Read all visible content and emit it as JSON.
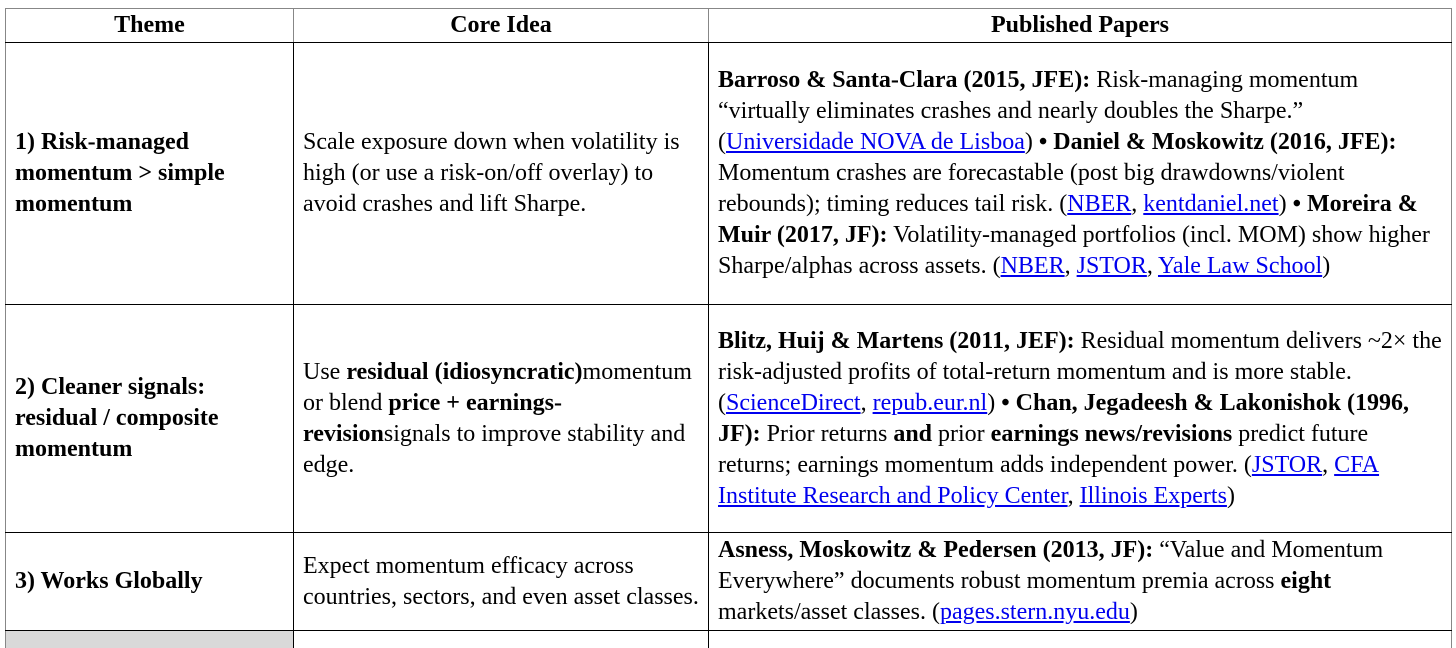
{
  "colors": {
    "link": "#0000ee",
    "text": "#000000",
    "inner_border": "#000000",
    "outer_border": "#878787",
    "shaded_cell": "#d9d9d9",
    "background": "#ffffff"
  },
  "table": {
    "header": [
      "Theme",
      "Core Idea",
      "Published Papers"
    ],
    "rows": [
      {
        "theme": [
          {
            "b": "1) Risk-managed momentum > simple momentum"
          }
        ],
        "core": [
          {
            "t": "Scale exposure down when volatility is high (or use a risk-on/off overlay) to avoid crashes and lift Sharpe."
          }
        ],
        "papers": [
          {
            "b": "Barroso & Santa-Clara (2015, JFE):"
          },
          {
            "t": " Risk-managing momentum “virtually eliminates crashes and nearly doubles the Sharpe.” ("
          },
          {
            "a": "Universidade NOVA de Lisboa"
          },
          {
            "t": ") "
          },
          {
            "b": "•  Daniel & Moskowitz (2016, JFE):"
          },
          {
            "t": " Momentum crashes are forecastable (post big drawdowns/violent rebounds); timing reduces tail risk. ("
          },
          {
            "a": "NBER"
          },
          {
            "t": ", "
          },
          {
            "a": "kentdaniel.net"
          },
          {
            "t": ") "
          },
          {
            "b": "•  Moreira & Muir (2017, JF):"
          },
          {
            "t": " Volatility-managed portfolios (incl. MOM) show higher Sharpe/alphas across assets. ("
          },
          {
            "a": "NBER"
          },
          {
            "t": ", "
          },
          {
            "a": "JSTOR"
          },
          {
            "t": ", "
          },
          {
            "a": "Yale Law School"
          },
          {
            "t": ")"
          }
        ]
      },
      {
        "theme": [
          {
            "b": "2) Cleaner signals: residual / composite momentum"
          }
        ],
        "core": [
          {
            "t": "Use "
          },
          {
            "b": "residual (idiosyncratic)"
          },
          {
            "t": "momentum or blend "
          },
          {
            "b": "price + earnings-revision"
          },
          {
            "t": "signals to improve stability and edge."
          }
        ],
        "papers": [
          {
            "b": "Blitz, Huij & Martens (2011, JEF):"
          },
          {
            "t": " Residual momentum delivers ~2× the risk-adjusted profits of total-return momentum and is more stable. ("
          },
          {
            "a": "ScienceDirect"
          },
          {
            "t": ", "
          },
          {
            "a": "repub.eur.nl"
          },
          {
            "t": ") "
          },
          {
            "b": "•  Chan, Jegadeesh & Lakonishok (1996, JF):"
          },
          {
            "t": " Prior returns "
          },
          {
            "b": "and"
          },
          {
            "t": " prior "
          },
          {
            "b": "earnings news/revisions"
          },
          {
            "t": " predict future returns; earnings momentum adds independent power. ("
          },
          {
            "a": "JSTOR"
          },
          {
            "t": ", "
          },
          {
            "a": "CFA Institute Research and Policy Center"
          },
          {
            "t": ", "
          },
          {
            "a": "Illinois Experts"
          },
          {
            "t": ")"
          }
        ]
      },
      {
        "theme": [
          {
            "b": "3) Works Globally"
          }
        ],
        "core": [
          {
            "t": "Expect momentum efficacy across countries, sectors, and even asset classes."
          }
        ],
        "papers": [
          {
            "b": "Asness, Moskowitz & Pedersen (2013, JF):"
          },
          {
            "t": " “Value and Momentum Everywhere” documents robust momentum premia across "
          },
          {
            "b": "eight"
          },
          {
            "t": " markets/asset classes. ("
          },
          {
            "a": "pages.stern.nyu.edu"
          },
          {
            "t": ")"
          }
        ]
      }
    ],
    "partial_row": {
      "theme": "",
      "core": "",
      "papers": ""
    }
  }
}
